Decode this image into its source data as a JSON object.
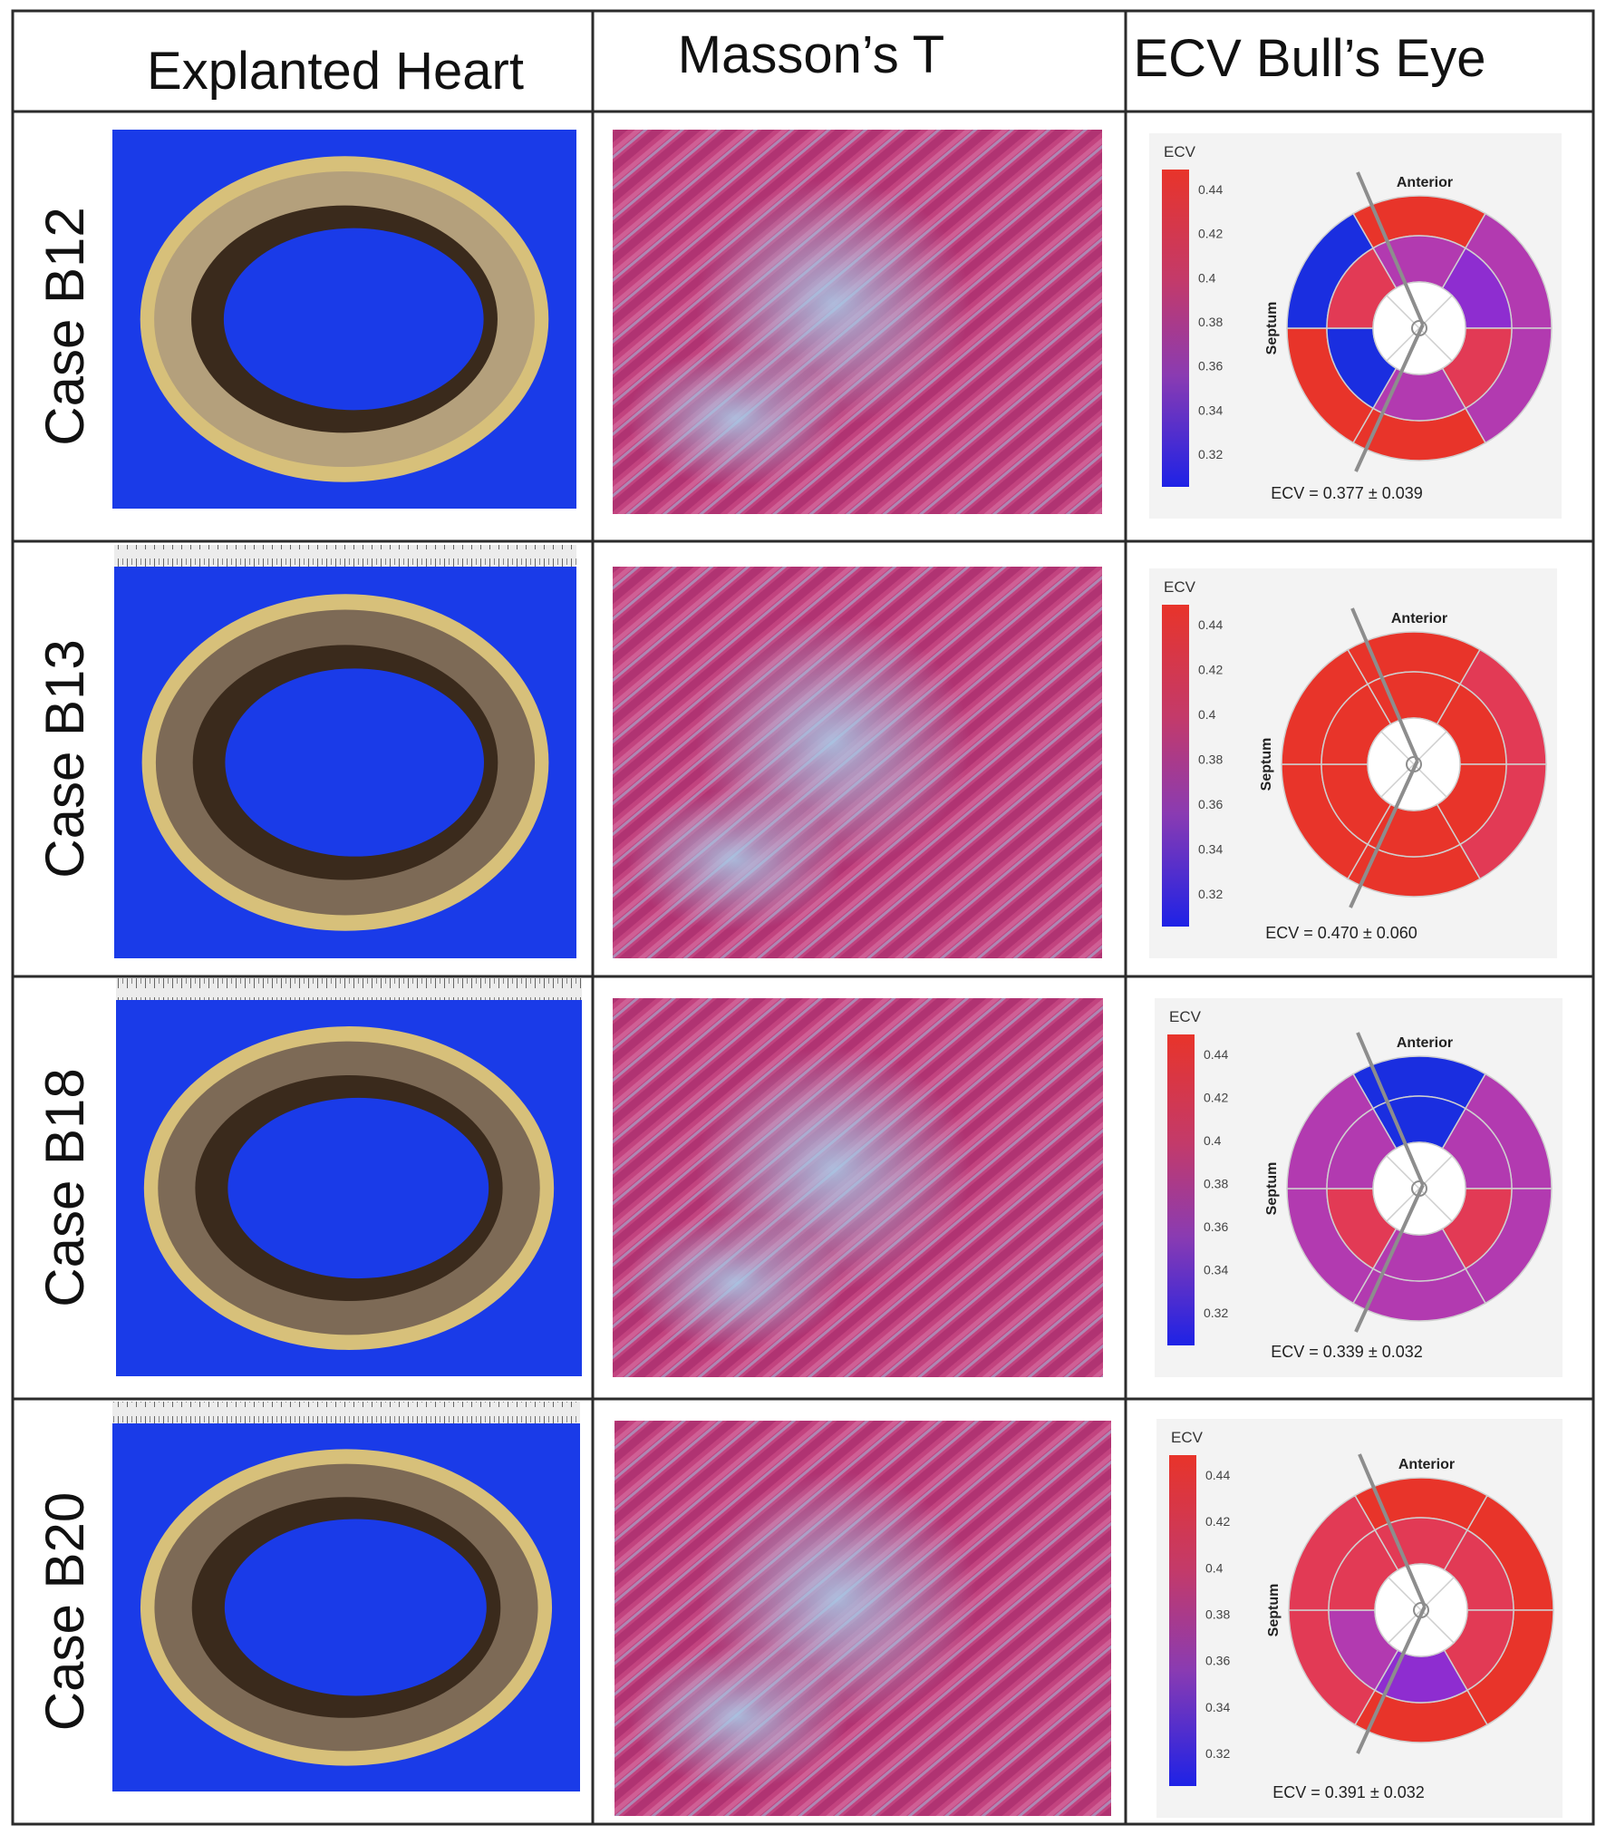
{
  "headers": [
    "Explanted Heart",
    "Masson’s T",
    "ECV Bull’s Eye"
  ],
  "colorbar": {
    "title": "ECV",
    "ticks": [
      "0.44",
      "0.42",
      "0.4",
      "0.38",
      "0.36",
      "0.34",
      "0.32"
    ],
    "colors": [
      "#e8342a",
      "#c33a6a",
      "#8a3bb2",
      "#1e22e6"
    ]
  },
  "orientation": {
    "anterior": "Anterior",
    "septum": "Septum"
  },
  "colors": {
    "grid": "#2b2b2b",
    "panel_bg": "#f3f3f3",
    "heart_bg": "#1a3be8",
    "red": "#e8342a",
    "pinkred": "#e23a55",
    "magenta": "#b23ab0",
    "purple": "#8e2dd0",
    "blue": "#1a2ee0"
  },
  "rows": [
    {
      "label": "Case B12",
      "ecv_text": "ECV = 0.377 ± 0.039",
      "outer": [
        "red",
        "magenta",
        "magenta",
        "red",
        "red",
        "blue"
      ],
      "inner": [
        "magenta",
        "purple",
        "pinkred",
        "magenta",
        "blue",
        "pinkred"
      ]
    },
    {
      "label": "Case B13",
      "ecv_text": "ECV = 0.470 ± 0.060",
      "outer": [
        "red",
        "pinkred",
        "pinkred",
        "red",
        "red",
        "red"
      ],
      "inner": [
        "red",
        "red",
        "red",
        "red",
        "red",
        "red"
      ]
    },
    {
      "label": "Case B18",
      "ecv_text": "ECV = 0.339 ± 0.032",
      "outer": [
        "blue",
        "magenta",
        "magenta",
        "magenta",
        "magenta",
        "magenta"
      ],
      "inner": [
        "blue",
        "magenta",
        "pinkred",
        "magenta",
        "pinkred",
        "magenta"
      ]
    },
    {
      "label": "Case B20",
      "ecv_text": "ECV = 0.391 ± 0.032",
      "outer": [
        "red",
        "red",
        "red",
        "red",
        "pinkred",
        "pinkred"
      ],
      "inner": [
        "pinkred",
        "pinkred",
        "pinkred",
        "purple",
        "magenta",
        "pinkred"
      ]
    }
  ]
}
